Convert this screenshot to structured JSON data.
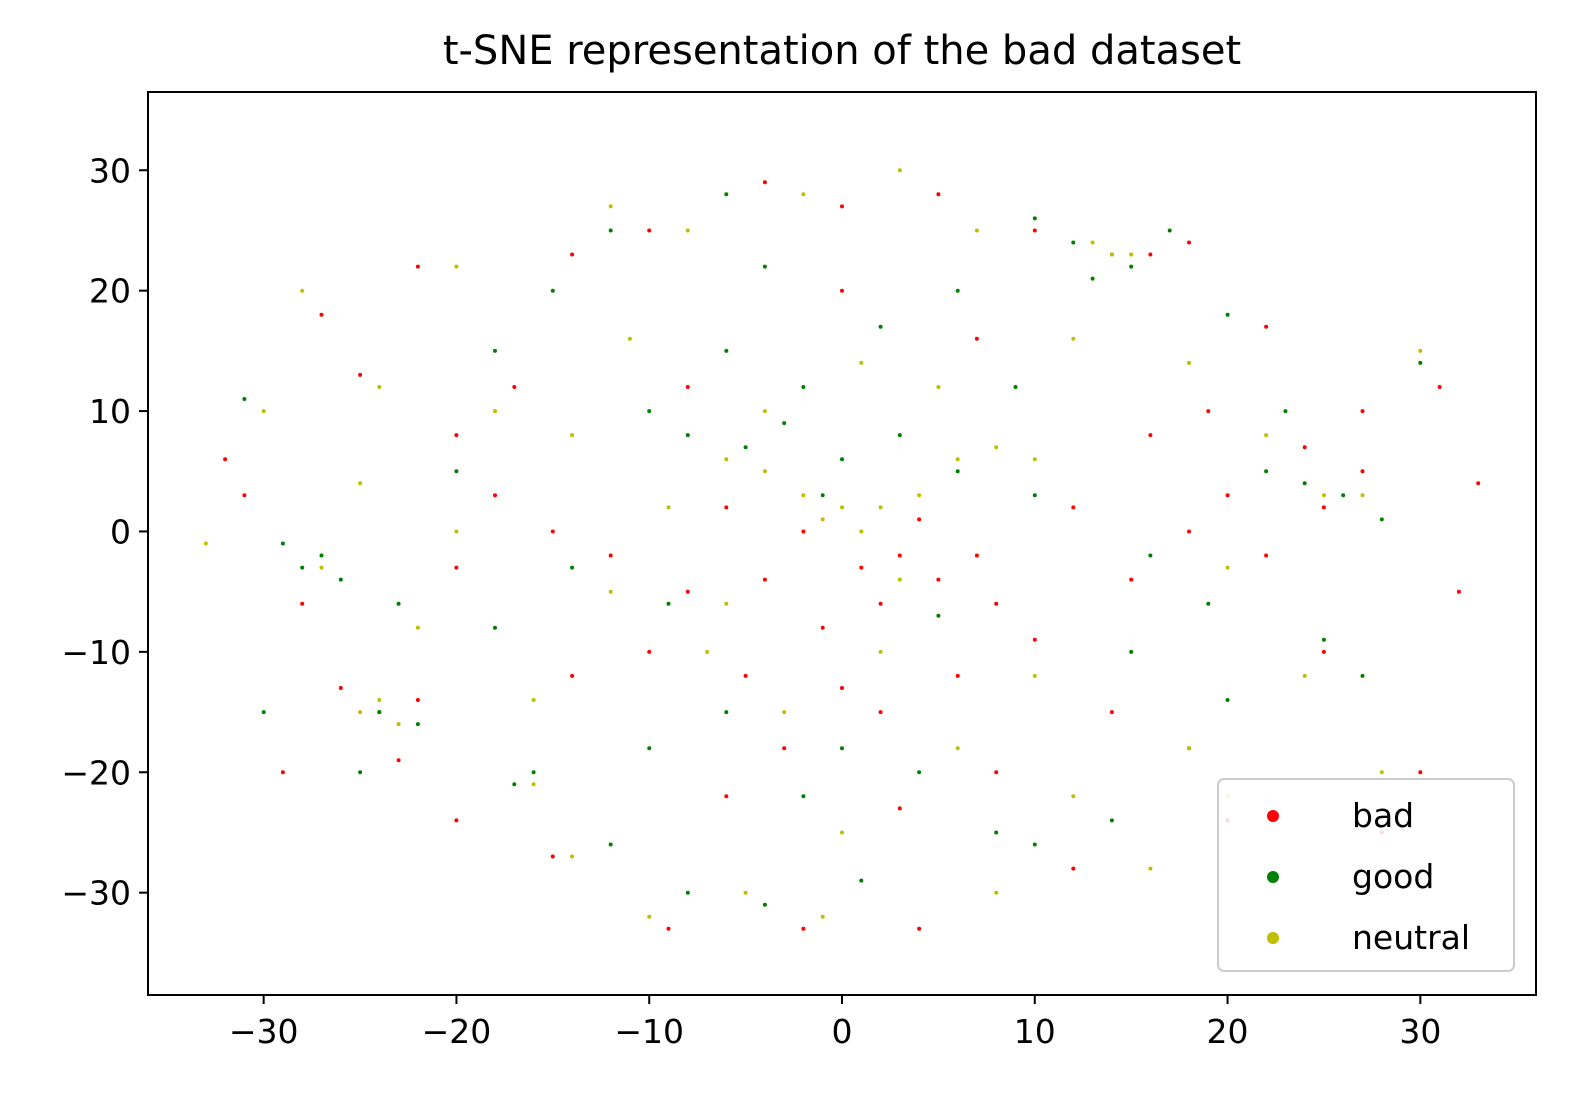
{
  "chart_data": {
    "type": "scatter",
    "title": "t-SNE representation of the bad dataset",
    "xlabel": "",
    "ylabel": "",
    "xlim": [
      -36,
      36
    ],
    "ylim": [
      -38.5,
      36.5
    ],
    "x_ticks": [
      -30,
      -20,
      -10,
      0,
      10,
      20,
      30
    ],
    "y_ticks": [
      -30,
      -20,
      -10,
      0,
      10,
      20,
      30
    ],
    "grid": false,
    "legend_position": "lower-right",
    "series": [
      {
        "name": "bad",
        "color": "#ff0000",
        "points": [
          [
            1,
            -3
          ],
          [
            2,
            -6
          ],
          [
            -1,
            -8
          ],
          [
            3,
            -2
          ],
          [
            5,
            -4
          ],
          [
            0,
            -13
          ],
          [
            2,
            -15
          ],
          [
            -3,
            -18
          ],
          [
            -5,
            -12
          ],
          [
            8,
            -6
          ],
          [
            10,
            -9
          ],
          [
            -8,
            -5
          ],
          [
            -12,
            -2
          ],
          [
            -15,
            0
          ],
          [
            -18,
            3
          ],
          [
            -20,
            -3
          ],
          [
            20,
            3
          ],
          [
            22,
            -2
          ],
          [
            25,
            2
          ],
          [
            27,
            5
          ],
          [
            24,
            7
          ],
          [
            18,
            0
          ],
          [
            15,
            -4
          ],
          [
            12,
            2
          ],
          [
            -24,
            -15
          ],
          [
            -23,
            -19
          ],
          [
            -22,
            -14
          ],
          [
            -26,
            -13
          ],
          [
            -29,
            -20
          ],
          [
            -31,
            3
          ],
          [
            -32,
            6
          ],
          [
            -27,
            18
          ],
          [
            -25,
            13
          ],
          [
            -22,
            22
          ],
          [
            -14,
            23
          ],
          [
            -10,
            25
          ],
          [
            -4,
            29
          ],
          [
            0,
            27
          ],
          [
            5,
            28
          ],
          [
            10,
            25
          ],
          [
            16,
            23
          ],
          [
            18,
            24
          ],
          [
            22,
            17
          ],
          [
            27,
            10
          ],
          [
            31,
            12
          ],
          [
            33,
            4
          ],
          [
            32,
            -5
          ],
          [
            30,
            -20
          ],
          [
            28,
            -25
          ],
          [
            20,
            -24
          ],
          [
            12,
            -28
          ],
          [
            4,
            -33
          ],
          [
            -2,
            -33
          ],
          [
            -9,
            -33
          ],
          [
            -15,
            -27
          ],
          [
            -20,
            -24
          ],
          [
            -6,
            -22
          ],
          [
            3,
            -23
          ],
          [
            8,
            -20
          ],
          [
            14,
            -15
          ],
          [
            6,
            -12
          ],
          [
            -4,
            -4
          ],
          [
            -6,
            2
          ],
          [
            -2,
            0
          ],
          [
            4,
            1
          ],
          [
            7,
            -2
          ],
          [
            -10,
            -10
          ],
          [
            -14,
            -12
          ],
          [
            16,
            8
          ],
          [
            19,
            10
          ],
          [
            -17,
            12
          ],
          [
            -20,
            8
          ],
          [
            -28,
            -6
          ],
          [
            -8,
            12
          ],
          [
            0,
            20
          ],
          [
            7,
            16
          ],
          [
            25,
            -10
          ]
        ]
      },
      {
        "name": "good",
        "color": "#008000",
        "points": [
          [
            -5,
            7
          ],
          [
            -3,
            9
          ],
          [
            0,
            6
          ],
          [
            -8,
            8
          ],
          [
            -10,
            10
          ],
          [
            -2,
            12
          ],
          [
            3,
            8
          ],
          [
            6,
            5
          ],
          [
            14,
            23
          ],
          [
            12,
            24
          ],
          [
            15,
            22
          ],
          [
            17,
            25
          ],
          [
            13,
            21
          ],
          [
            10,
            26
          ],
          [
            -28,
            -3
          ],
          [
            -27,
            -2
          ],
          [
            -26,
            -4
          ],
          [
            -29,
            -1
          ],
          [
            -24,
            -15
          ],
          [
            -22,
            -16
          ],
          [
            -17,
            -21
          ],
          [
            -16,
            -20
          ],
          [
            26,
            3
          ],
          [
            24,
            4
          ],
          [
            22,
            5
          ],
          [
            28,
            1
          ],
          [
            30,
            14
          ],
          [
            -12,
            25
          ],
          [
            -6,
            28
          ],
          [
            -4,
            22
          ],
          [
            2,
            17
          ],
          [
            6,
            20
          ],
          [
            -15,
            20
          ],
          [
            -18,
            15
          ],
          [
            -20,
            5
          ],
          [
            -14,
            -3
          ],
          [
            -9,
            -6
          ],
          [
            -6,
            -15
          ],
          [
            -2,
            -22
          ],
          [
            4,
            -20
          ],
          [
            10,
            -26
          ],
          [
            14,
            -24
          ],
          [
            18,
            -18
          ],
          [
            20,
            -14
          ],
          [
            25,
            -9
          ],
          [
            27,
            -12
          ],
          [
            -8,
            -30
          ],
          [
            -4,
            -31
          ],
          [
            1,
            -29
          ],
          [
            8,
            -25
          ],
          [
            -12,
            -26
          ],
          [
            -18,
            -8
          ],
          [
            -23,
            -6
          ],
          [
            10,
            3
          ],
          [
            16,
            -2
          ],
          [
            19,
            -6
          ],
          [
            5,
            -7
          ],
          [
            -1,
            3
          ],
          [
            -6,
            15
          ],
          [
            9,
            12
          ],
          [
            20,
            18
          ],
          [
            -31,
            11
          ],
          [
            -30,
            -15
          ],
          [
            -25,
            -20
          ],
          [
            15,
            -10
          ],
          [
            23,
            10
          ],
          [
            0,
            -18
          ],
          [
            -10,
            -18
          ]
        ]
      },
      {
        "name": "neutral",
        "color": "#bfbf00",
        "points": [
          [
            -1,
            1
          ],
          [
            0,
            2
          ],
          [
            1,
            0
          ],
          [
            -2,
            3
          ],
          [
            2,
            2
          ],
          [
            4,
            3
          ],
          [
            -4,
            5
          ],
          [
            -6,
            6
          ],
          [
            8,
            7
          ],
          [
            10,
            6
          ],
          [
            6,
            6
          ],
          [
            14,
            23
          ],
          [
            15,
            23
          ],
          [
            13,
            24
          ],
          [
            -25,
            -15
          ],
          [
            -24,
            -14
          ],
          [
            -23,
            -16
          ],
          [
            -27,
            -3
          ],
          [
            -16,
            -21
          ],
          [
            25,
            3
          ],
          [
            27,
            3
          ],
          [
            30,
            15
          ],
          [
            -12,
            27
          ],
          [
            -8,
            25
          ],
          [
            -2,
            28
          ],
          [
            3,
            30
          ],
          [
            7,
            25
          ],
          [
            -14,
            8
          ],
          [
            -18,
            10
          ],
          [
            -20,
            0
          ],
          [
            -12,
            -5
          ],
          [
            -7,
            -10
          ],
          [
            -3,
            -15
          ],
          [
            2,
            -10
          ],
          [
            6,
            -18
          ],
          [
            12,
            -22
          ],
          [
            16,
            -28
          ],
          [
            -5,
            -30
          ],
          [
            -1,
            -32
          ],
          [
            -10,
            -32
          ],
          [
            -14,
            -27
          ],
          [
            -22,
            -8
          ],
          [
            -28,
            20
          ],
          [
            -24,
            12
          ],
          [
            -30,
            10
          ],
          [
            -33,
            -1
          ],
          [
            20,
            -3
          ],
          [
            22,
            8
          ],
          [
            18,
            14
          ],
          [
            24,
            -12
          ],
          [
            28,
            -20
          ],
          [
            10,
            -12
          ],
          [
            -9,
            2
          ],
          [
            3,
            -4
          ],
          [
            -4,
            10
          ],
          [
            1,
            14
          ],
          [
            5,
            12
          ],
          [
            -16,
            -14
          ],
          [
            12,
            16
          ],
          [
            0,
            -25
          ],
          [
            8,
            -30
          ],
          [
            20,
            -22
          ],
          [
            -20,
            22
          ],
          [
            18,
            -18
          ],
          [
            -6,
            -6
          ],
          [
            -11,
            16
          ],
          [
            -25,
            4
          ]
        ]
      }
    ]
  }
}
